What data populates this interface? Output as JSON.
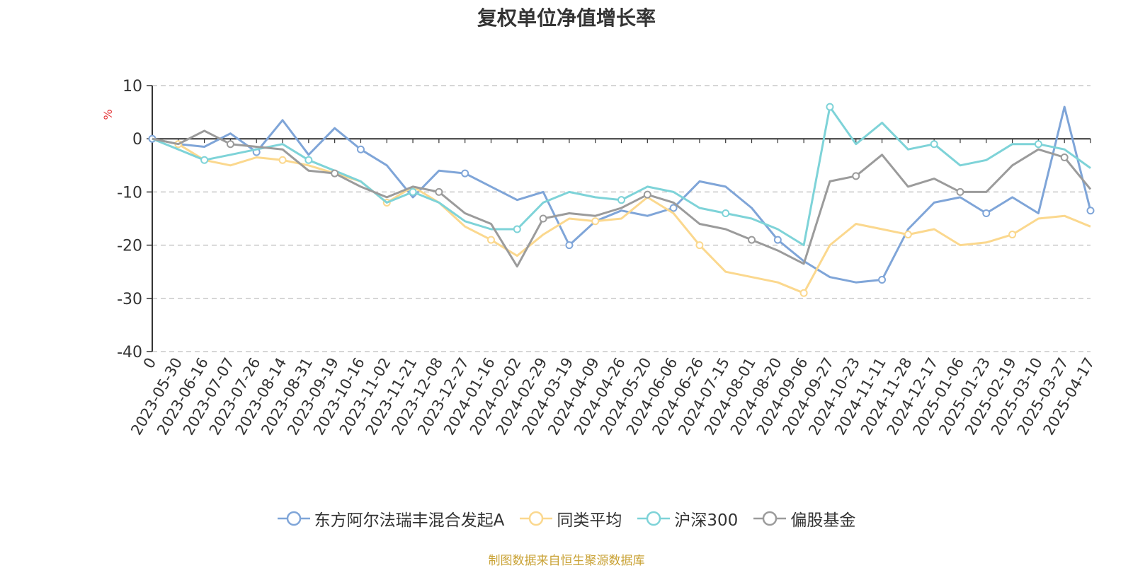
{
  "chart_data": {
    "type": "line",
    "title": "复权单位净值增长率",
    "ylabel": "%",
    "ylim": [
      -40,
      10
    ],
    "yticks": [
      10,
      0,
      -10,
      -20,
      -30,
      -40
    ],
    "grid": true,
    "legend_position": "bottom",
    "x_tick_labels": [
      "0",
      "2023-05-30",
      "2023-06-16",
      "2023-07-07",
      "2023-07-26",
      "2023-08-14",
      "2023-08-31",
      "2023-09-19",
      "2023-10-16",
      "2023-11-02",
      "2023-11-21",
      "2023-12-08",
      "2023-12-27",
      "2024-01-16",
      "2024-02-02",
      "2024-02-29",
      "2024-03-19",
      "2024-04-09",
      "2024-04-26",
      "2024-05-20",
      "2024-06-06",
      "2024-06-26",
      "2024-07-15",
      "2024-08-01",
      "2024-08-20",
      "2024-09-06",
      "2024-09-27",
      "2024-10-23",
      "2024-11-11",
      "2024-11-28",
      "2024-12-17",
      "2025-01-06",
      "2025-01-23",
      "2025-02-19",
      "2025-03-10",
      "2025-03-27",
      "2025-04-17"
    ],
    "series": [
      {
        "name": "东方阿尔法瑞丰混合发起A",
        "color": "#7fa5d8",
        "values": [
          0,
          -1,
          -1.5,
          1,
          -2.5,
          3.5,
          -3,
          2,
          -2,
          -5,
          -11,
          -6,
          -6.5,
          -9,
          -11.5,
          -10,
          -20,
          -15.5,
          -13.5,
          -14.5,
          -13,
          -8,
          -9,
          -13,
          -19,
          -23,
          -26,
          -27,
          -26.5,
          -17,
          -12,
          -11,
          -14,
          -11,
          -14,
          6,
          -13.5
        ]
      },
      {
        "name": "同类平均",
        "color": "#fbd88e",
        "values": [
          0,
          -1,
          -4,
          -5,
          -3.5,
          -4,
          -5,
          -6.5,
          -8,
          -12,
          -9,
          -12,
          -16.5,
          -19,
          -22,
          -18,
          -15,
          -15.5,
          -15,
          -11,
          -14,
          -20,
          -25,
          -26,
          -27,
          -29,
          -20,
          -16,
          -17,
          -18,
          -17,
          -20,
          -19.5,
          -18,
          -15,
          -14.5,
          -16.5
        ]
      },
      {
        "name": "沪深300",
        "color": "#7ed3d8",
        "values": [
          0,
          -2,
          -4,
          -3,
          -2,
          -1,
          -4,
          -6,
          -8,
          -12,
          -10,
          -12,
          -15.5,
          -17,
          -17,
          -12,
          -10,
          -11,
          -11.5,
          -9,
          -10,
          -13,
          -14,
          -15,
          -17,
          -20,
          6,
          -1,
          3,
          -2,
          -1,
          -5,
          -4,
          -1,
          -1,
          -2,
          -5.5
        ]
      },
      {
        "name": "偏股基金",
        "color": "#9b9b9b",
        "values": [
          0,
          -1,
          1.5,
          -1,
          -1.5,
          -2,
          -6,
          -6.5,
          -9,
          -11,
          -9,
          -10,
          -14,
          -16,
          -24,
          -15,
          -14,
          -14.5,
          -13,
          -10.5,
          -12,
          -16,
          -17,
          -19,
          -21,
          -23.5,
          -8,
          -7,
          -3,
          -9,
          -7.5,
          -10,
          -10,
          -5,
          -2,
          -3.5,
          -9.5
        ]
      }
    ]
  },
  "legend": [
    {
      "label": "东方阿尔法瑞丰混合发起A",
      "color": "#7fa5d8"
    },
    {
      "label": "同类平均",
      "color": "#fbd88e"
    },
    {
      "label": "沪深300",
      "color": "#7ed3d8"
    },
    {
      "label": "偏股基金",
      "color": "#9b9b9b"
    }
  ],
  "source_note": "制图数据来自恒生聚源数据库"
}
